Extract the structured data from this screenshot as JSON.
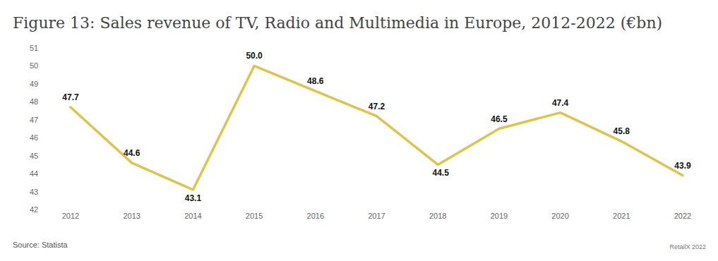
{
  "chart_data": {
    "type": "line",
    "title": "Figure 13: Sales revenue of TV, Radio and Multimedia in Europe, 2012-2022 (€bn)",
    "categories": [
      "2012",
      "2013",
      "2014",
      "2015",
      "2016",
      "2017",
      "2018",
      "2019",
      "2020",
      "2021",
      "2022"
    ],
    "values": [
      47.7,
      44.6,
      43.1,
      50.0,
      48.6,
      47.2,
      44.5,
      46.5,
      47.4,
      45.8,
      43.9
    ],
    "value_labels": [
      "47.7",
      "44.6",
      "43.1",
      "50.0",
      "48.6",
      "47.2",
      "44.5",
      "46.5",
      "47.4",
      "45.8",
      "43.9"
    ],
    "color": "#dcc44e",
    "ylim": [
      42,
      51
    ],
    "yticks": [
      42,
      43,
      44,
      45,
      46,
      47,
      48,
      49,
      50,
      51
    ],
    "grid": false,
    "data_labels": true,
    "annotations": [
      "Source: Statista",
      "RetailX 2022"
    ]
  }
}
